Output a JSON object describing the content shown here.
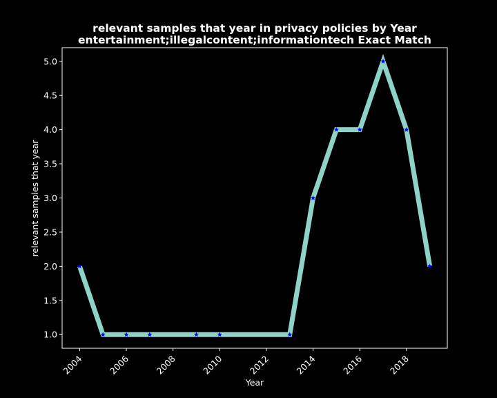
{
  "chart_data": {
    "type": "line",
    "title": "relevant samples that year in privacy policies by Year",
    "subtitle": "entertainment;illegalcontent;informationtech Exact Match",
    "xlabel": "Year",
    "ylabel": "relevant samples that year",
    "xlim": [
      2003.25,
      2019.75
    ],
    "ylim": [
      0.8,
      5.2
    ],
    "xticks": [
      2004,
      2006,
      2008,
      2010,
      2012,
      2014,
      2016,
      2018
    ],
    "yticks": [
      1.0,
      1.5,
      2.0,
      2.5,
      3.0,
      3.5,
      4.0,
      4.5,
      5.0
    ],
    "grid": false,
    "background": "#000000",
    "line_color": "#8dd3c7",
    "marker_color": "#0000ff",
    "marker": "star",
    "series": [
      {
        "x": [
          2004,
          2005,
          2006,
          2007,
          2009,
          2010,
          2013,
          2014,
          2015,
          2016,
          2017,
          2018,
          2019
        ],
        "y": [
          2,
          1,
          1,
          1,
          1,
          1,
          1,
          3,
          4,
          4,
          5,
          4,
          2
        ]
      }
    ]
  }
}
